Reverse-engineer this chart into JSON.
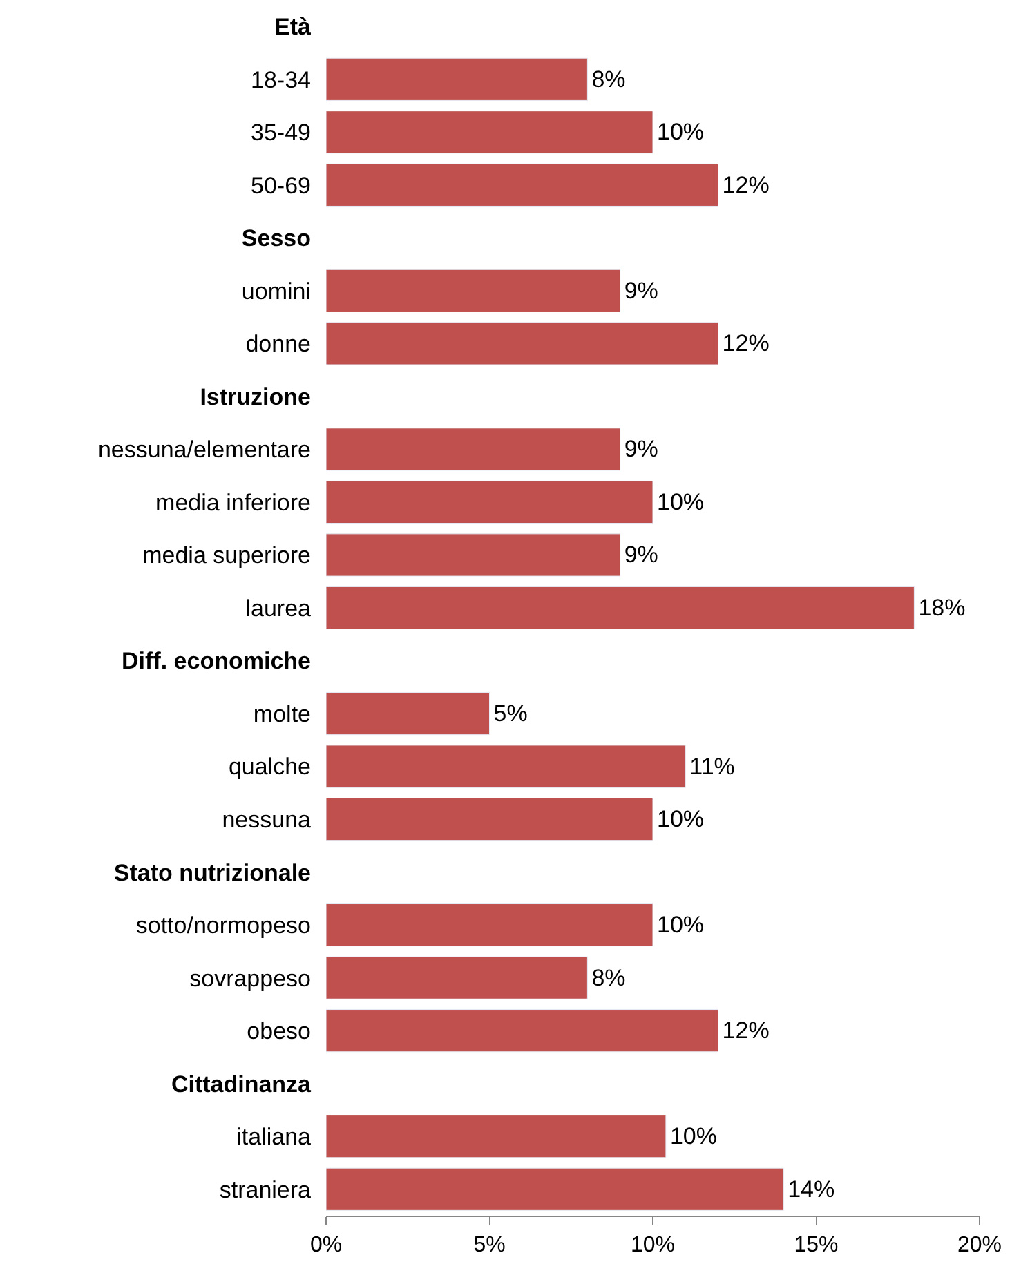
{
  "chart_data": {
    "type": "bar",
    "orientation": "horizontal",
    "categories": [
      "Età",
      "18-34",
      "35-49",
      "50-69",
      "Sesso",
      "uomini",
      "donne",
      "Istruzione",
      "nessuna/elementare",
      "media inferiore",
      "media superiore",
      "laurea",
      "Diff. economiche",
      "molte",
      "qualche",
      "nessuna",
      "Stato nutrizionale",
      "sotto/normopeso",
      "sovrappeso",
      "obeso",
      "Cittadinanza",
      "italiana",
      "straniera"
    ],
    "values": [
      null,
      8,
      10,
      12,
      null,
      9,
      12,
      null,
      9,
      10,
      9,
      18,
      null,
      5,
      11,
      10,
      null,
      10,
      8,
      12,
      null,
      10.4,
      14
    ],
    "value_labels": [
      null,
      "8%",
      "10%",
      "12%",
      null,
      "9%",
      "12%",
      null,
      "9%",
      "10%",
      "9%",
      "18%",
      null,
      "5%",
      "11%",
      "10%",
      null,
      "10%",
      "8%",
      "12%",
      null,
      "10%",
      "14%"
    ],
    "color": "#c0504d",
    "xlim": [
      0,
      20
    ],
    "xticks": [
      {
        "value": 0,
        "label": "0%"
      },
      {
        "value": 5,
        "label": "5%"
      },
      {
        "value": 10,
        "label": "10%"
      },
      {
        "value": 15,
        "label": "15%"
      },
      {
        "value": 20,
        "label": "20%"
      }
    ],
    "legend": false
  }
}
